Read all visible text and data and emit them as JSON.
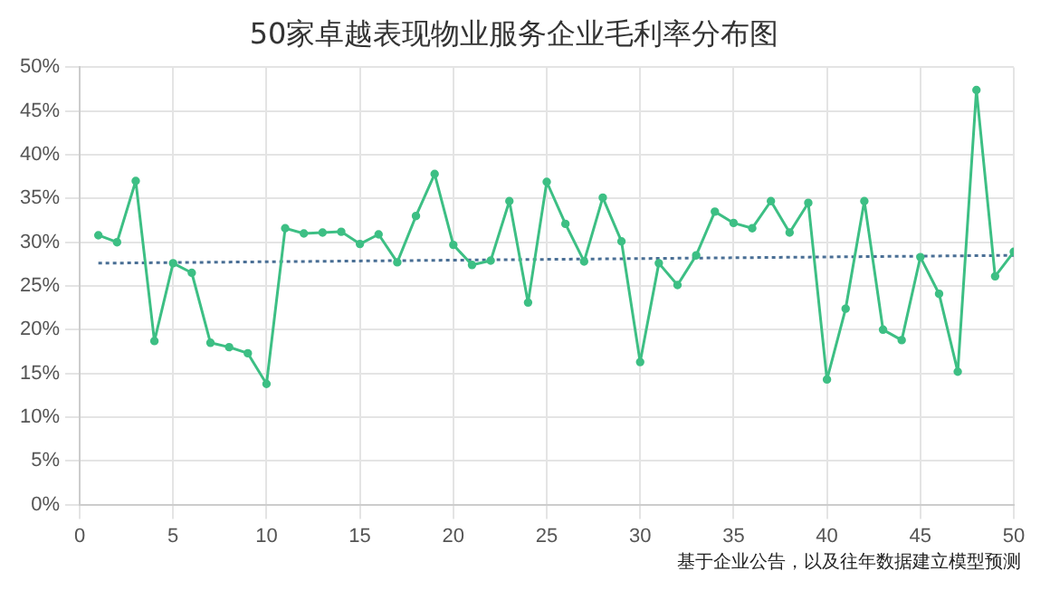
{
  "chart_data": {
    "type": "line",
    "title": "50家卓越表现物业服务企业毛利率分布图",
    "annotations": [
      "基于企业公告，以及往年数据建立模型预测"
    ],
    "xlim": [
      0,
      50
    ],
    "xticks": [
      0,
      5,
      10,
      15,
      20,
      25,
      30,
      35,
      40,
      45,
      50
    ],
    "ylim": [
      0,
      50
    ],
    "yticks": [
      {
        "value": 0,
        "label": "0%"
      },
      {
        "value": 5,
        "label": "5%"
      },
      {
        "value": 10,
        "label": "10%"
      },
      {
        "value": 15,
        "label": "15%"
      },
      {
        "value": 20,
        "label": "20%"
      },
      {
        "value": 25,
        "label": "25%"
      },
      {
        "value": 30,
        "label": "30%"
      },
      {
        "value": 35,
        "label": "35%"
      },
      {
        "value": 40,
        "label": "40%"
      },
      {
        "value": 45,
        "label": "45%"
      },
      {
        "value": 50,
        "label": "50%"
      }
    ],
    "grid": true,
    "legend": false,
    "series": [
      {
        "type": "line",
        "color": "#3dbf84",
        "marker": "circle",
        "line_style": "solid",
        "x": [
          1,
          2,
          3,
          4,
          5,
          6,
          7,
          8,
          9,
          10,
          11,
          12,
          13,
          14,
          15,
          16,
          17,
          18,
          19,
          20,
          21,
          22,
          23,
          24,
          25,
          26,
          27,
          28,
          29,
          30,
          31,
          32,
          33,
          34,
          35,
          36,
          37,
          38,
          39,
          40,
          41,
          42,
          43,
          44,
          45,
          46,
          47,
          48,
          49,
          50
        ],
        "values": [
          30.8,
          30.0,
          37.0,
          18.7,
          27.6,
          26.5,
          18.5,
          18.0,
          17.3,
          13.8,
          31.6,
          31.0,
          31.1,
          31.2,
          29.8,
          30.9,
          27.7,
          33.0,
          37.8,
          29.7,
          27.4,
          27.9,
          34.7,
          23.1,
          36.9,
          32.1,
          27.8,
          35.1,
          30.1,
          16.3,
          27.6,
          25.1,
          28.5,
          33.5,
          32.2,
          31.6,
          34.7,
          31.1,
          34.5,
          14.3,
          22.4,
          34.7,
          20.0,
          18.8,
          28.3,
          24.1,
          15.2,
          47.4,
          26.1,
          28.9
        ]
      },
      {
        "type": "line",
        "color": "#4a6f95",
        "marker": "none",
        "line_style": "dotted",
        "x": [
          1,
          50
        ],
        "values": [
          27.6,
          28.5
        ]
      }
    ]
  }
}
